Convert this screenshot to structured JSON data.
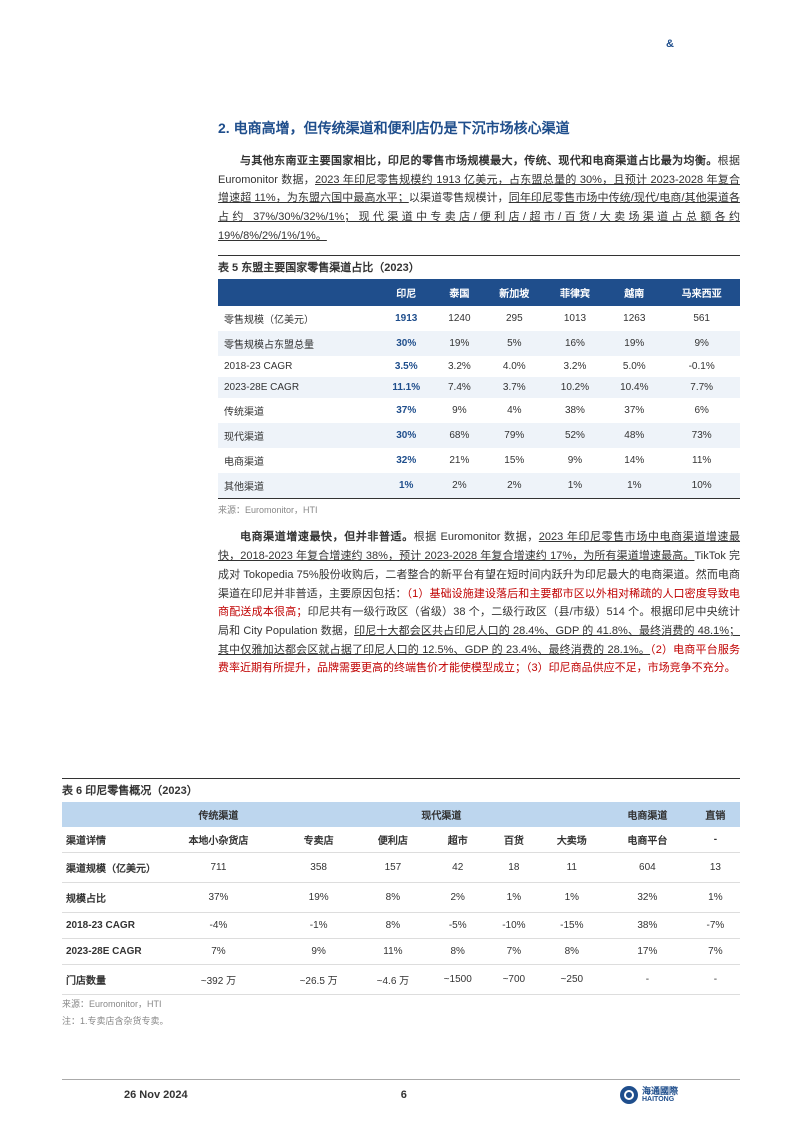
{
  "header_mark": "&",
  "section": {
    "number": "2.",
    "title": "电商高增，但传统渠道和便利店仍是下沉市场核心渠道"
  },
  "para1": {
    "lead": "与其他东南亚主要国家相比，印尼的零售市场规模最大，传统、现代和电商渠道占比最为均衡。",
    "body_pre": "根据 Euromonitor 数据，",
    "ul1": "2023 年印尼零售规模约 1913 亿美元，占东盟总量的 30%，且预计 2023-2028 年复合增速超 11%，为东盟六国中最高水平；",
    "body_mid": "以渠道零售规模计，",
    "ul2": "同年印尼零售市场中传统/现代/电商/其他渠道各占约 37%/30%/32%/1%；现代渠道中专卖店/便利店/超市/百货/大卖场渠道占总额各约 19%/8%/2%/1%/1%。"
  },
  "table5": {
    "title": "表 5 东盟主要国家零售渠道占比（2023）",
    "headers": [
      "",
      "印尼",
      "泰国",
      "新加坡",
      "菲律宾",
      "越南",
      "马来西亚"
    ],
    "rows": [
      [
        "零售规模（亿美元）",
        "1913",
        "1240",
        "295",
        "1013",
        "1263",
        "561"
      ],
      [
        "零售规模占东盟总量",
        "30%",
        "19%",
        "5%",
        "16%",
        "19%",
        "9%"
      ],
      [
        "2018-23 CAGR",
        "3.5%",
        "3.2%",
        "4.0%",
        "3.2%",
        "5.0%",
        "-0.1%"
      ],
      [
        "2023-28E CAGR",
        "11.1%",
        "7.4%",
        "3.7%",
        "10.2%",
        "10.4%",
        "7.7%"
      ],
      [
        "传统渠道",
        "37%",
        "9%",
        "4%",
        "38%",
        "37%",
        "6%"
      ],
      [
        "现代渠道",
        "30%",
        "68%",
        "79%",
        "52%",
        "48%",
        "73%"
      ],
      [
        "电商渠道",
        "32%",
        "21%",
        "15%",
        "9%",
        "14%",
        "11%"
      ],
      [
        "其他渠道",
        "1%",
        "2%",
        "2%",
        "1%",
        "1%",
        "10%"
      ]
    ],
    "source": "来源：Euromonitor，HTI"
  },
  "para2": {
    "lead": "电商渠道增速最快，但并非普适。",
    "body1": "根据 Euromonitor 数据，",
    "ul1": "2023 年印尼零售市场中电商渠道增速最快，2018-2023 年复合增速约 38%，预计 2023-2028 年复合增速约 17%，为所有渠道增速最高。",
    "body2": "TikTok 完成对 Tokopedia 75%股份收购后，二者整合的新平台有望在短时间内跃升为印尼最大的电商渠道。然而电商渠道在印尼并非普适，主要原因包括：",
    "red1": "（1）基础设施建设落后和主要都市区以外相对稀疏的人口密度导致电商配送成本很高；",
    "body3": "印尼共有一级行政区（省级）38 个，二级行政区（县/市级）514 个。根据印尼中央统计局和 City Population 数据，",
    "ul2": "印尼十大都会区共占印尼人口的 28.4%、GDP 的 41.8%、最终消费的 48.1%；其中仅雅加达都会区就占据了印尼人口的 12.5%、GDP 的 23.4%、最终消费的 28.1%。",
    "red2": "（2）电商平台服务费率近期有所提升，品牌需要更高的终端售价才能使模型成立；（3）印尼商品供应不足，市场竞争不充分。"
  },
  "table6": {
    "title": "表 6 印尼零售概况（2023）",
    "group_headers": [
      "",
      "传统渠道",
      "现代渠道",
      "电商渠道",
      "直销"
    ],
    "sub_headers": [
      "渠道详情",
      "本地小杂货店",
      "专卖店",
      "便利店",
      "超市",
      "百货",
      "大卖场",
      "电商平台",
      "-"
    ],
    "rows": [
      [
        "渠道规模（亿美元）",
        "711",
        "358",
        "157",
        "42",
        "18",
        "11",
        "604",
        "13"
      ],
      [
        "规模占比",
        "37%",
        "19%",
        "8%",
        "2%",
        "1%",
        "1%",
        "32%",
        "1%"
      ],
      [
        "2018-23 CAGR",
        "-4%",
        "-1%",
        "8%",
        "-5%",
        "-10%",
        "-15%",
        "38%",
        "-7%"
      ],
      [
        "2023-28E CAGR",
        "7%",
        "9%",
        "11%",
        "8%",
        "7%",
        "8%",
        "17%",
        "7%"
      ],
      [
        "门店数量",
        "~392 万",
        "~26.5 万",
        "~4.6 万",
        "~1500",
        "~700",
        "~250",
        "-",
        "-"
      ]
    ],
    "source": "来源：Euromonitor，HTI",
    "note": "注：1.专卖店含杂货专卖。"
  },
  "footer": {
    "date": "26 Nov 2024",
    "page": "6",
    "logo_text_cn": "海通國際",
    "logo_text_en": "HAITONG"
  },
  "colors": {
    "primary": "#1f4e8c",
    "red": "#c00000",
    "subhead_bg": "#bdd6ee",
    "row_alt": "#eef3f9"
  }
}
